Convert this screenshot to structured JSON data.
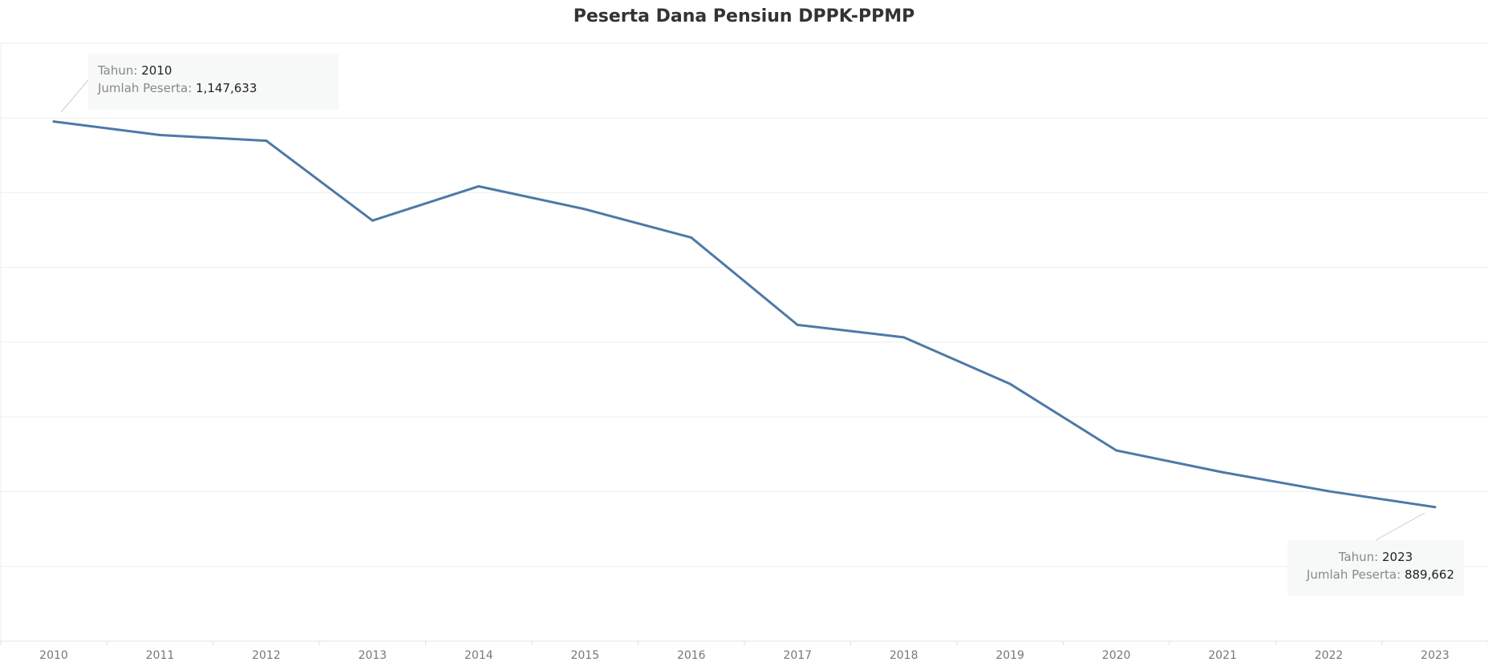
{
  "chart_data": {
    "type": "line",
    "title": "Peserta Dana Pensiun DPPK-PPMP",
    "xlabel": "",
    "ylabel": "",
    "x": [
      "2010",
      "2011",
      "2012",
      "2013",
      "2014",
      "2015",
      "2016",
      "2017",
      "2018",
      "2019",
      "2020",
      "2021",
      "2022",
      "2023"
    ],
    "series": [
      {
        "name": "Jumlah Peserta",
        "values": [
          1147633,
          1138600,
          1134800,
          1081400,
          1104300,
          1089000,
          1070000,
          1011600,
          1003300,
          972100,
          927600,
          913000,
          900300,
          889662
        ]
      }
    ],
    "ylim": [
      800000,
      1200000
    ],
    "gridlines": [
      800000,
      850000,
      900000,
      950000,
      1000000,
      1050000,
      1100000,
      1150000,
      1200000
    ],
    "grid": true,
    "line_color": "#4e79a7",
    "annotations": [
      {
        "year_label": "Tahun:",
        "year": "2010",
        "value_label": "Jumlah Peserta:",
        "value": "1,147,633"
      },
      {
        "year_label": "Tahun:",
        "year": "2023",
        "value_label": "Jumlah Peserta:",
        "value": "889,662"
      }
    ]
  }
}
